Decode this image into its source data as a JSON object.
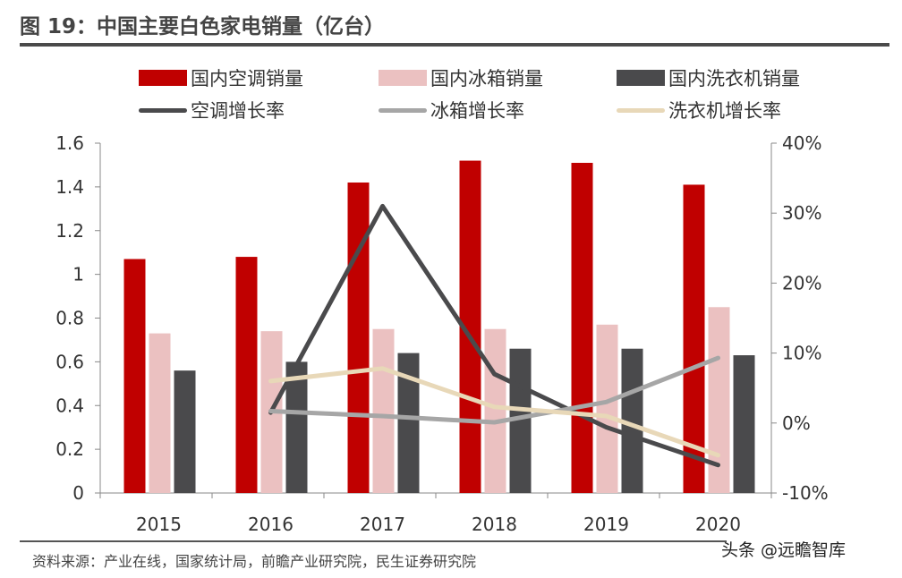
{
  "title": "图 19：中国主要白色家电销量（亿台）",
  "source": "资料来源：产业在线，国家统计局，前瞻产业研究院，民生证券研究院",
  "watermark": "头条 @远瞻智库",
  "chart_data": {
    "type": "bar+line",
    "categories": [
      "2015",
      "2016",
      "2017",
      "2018",
      "2019",
      "2020"
    ],
    "left_axis": {
      "ylim": [
        0,
        1.6
      ],
      "ticks": [
        "0",
        "0.2",
        "0.4",
        "0.6",
        "0.8",
        "1",
        "1.2",
        "1.4",
        "1.6"
      ]
    },
    "right_axis": {
      "ylim": [
        -10,
        40
      ],
      "ticks": [
        "-10%",
        "0%",
        "10%",
        "20%",
        "30%",
        "40%"
      ]
    },
    "bar_series": [
      {
        "name": "国内空调销量",
        "color": "#c00000",
        "values": [
          1.07,
          1.08,
          1.42,
          1.52,
          1.51,
          1.41
        ]
      },
      {
        "name": "国内冰箱销量",
        "color": "#ebc1c1",
        "values": [
          0.73,
          0.74,
          0.75,
          0.75,
          0.77,
          0.85
        ]
      },
      {
        "name": "国内洗衣机销量",
        "color": "#4a4a4c",
        "values": [
          0.56,
          0.6,
          0.64,
          0.66,
          0.66,
          0.63
        ]
      }
    ],
    "line_series": [
      {
        "name": "空调增长率",
        "color": "#4a4a4c",
        "values": [
          null,
          1.5,
          31,
          7,
          -0.6,
          -6
        ]
      },
      {
        "name": "冰箱增长率",
        "color": "#a6a6a6",
        "values": [
          null,
          1.7,
          1,
          0.1,
          3,
          9.3
        ]
      },
      {
        "name": "洗衣机增长率",
        "color": "#e8d8b8",
        "values": [
          null,
          6,
          7.8,
          2.3,
          1,
          -4.6
        ]
      }
    ],
    "legend": "top",
    "grid": false
  }
}
